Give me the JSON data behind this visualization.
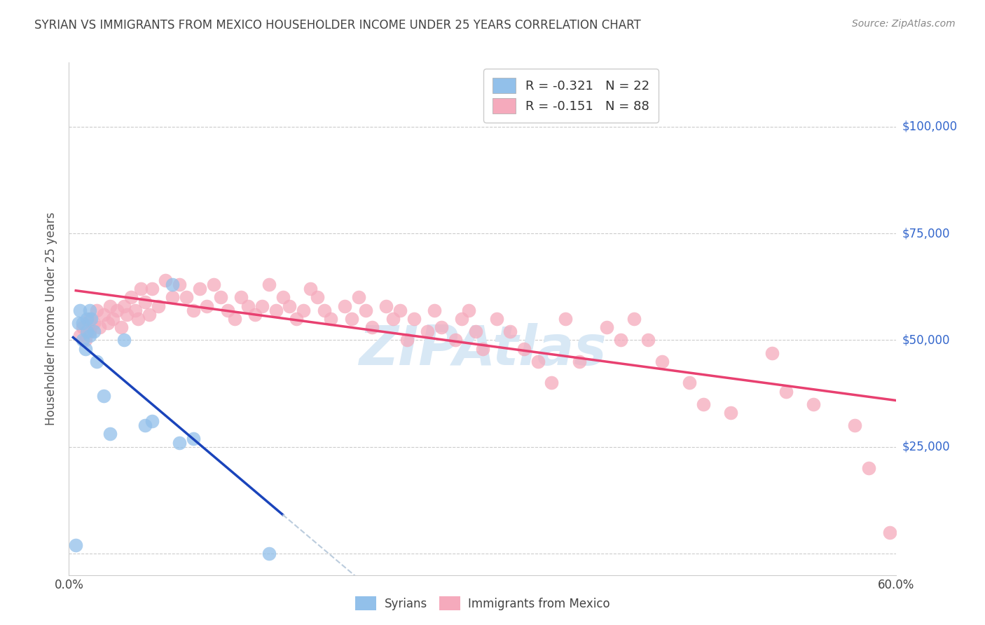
{
  "title": "SYRIAN VS IMMIGRANTS FROM MEXICO HOUSEHOLDER INCOME UNDER 25 YEARS CORRELATION CHART",
  "source": "Source: ZipAtlas.com",
  "ylabel": "Householder Income Under 25 years",
  "watermark": "ZIPAtlas",
  "xlim": [
    0.0,
    0.6
  ],
  "ylim": [
    -5000,
    115000
  ],
  "yticks": [
    0,
    25000,
    50000,
    75000,
    100000
  ],
  "ytick_labels": [
    "",
    "$25,000",
    "$50,000",
    "$75,000",
    "$100,000"
  ],
  "xticks": [
    0.0,
    0.1,
    0.2,
    0.3,
    0.4,
    0.5,
    0.6
  ],
  "xtick_labels": [
    "0.0%",
    "",
    "",
    "",
    "",
    "",
    "60.0%"
  ],
  "legend_syrian_r": "R = -0.321",
  "legend_syrian_n": "N = 22",
  "legend_mexico_r": "R = -0.151",
  "legend_mexico_n": "N = 88",
  "syrian_color": "#92C0EA",
  "mexico_color": "#F5AABC",
  "trend_syrian_color": "#1A44BB",
  "trend_mexico_color": "#E84070",
  "trend_syrian_dashed_color": "#BBCCDD",
  "background_color": "#FFFFFF",
  "grid_color": "#CCCCCC",
  "axis_color": "#CCCCCC",
  "title_color": "#444444",
  "ylabel_color": "#555555",
  "ytick_label_color": "#3366CC",
  "xtick_label_color": "#444444",
  "source_color": "#888888",
  "watermark_color": "#D8E8F5",
  "syrian_x": [
    0.005,
    0.007,
    0.008,
    0.01,
    0.01,
    0.012,
    0.013,
    0.013,
    0.015,
    0.015,
    0.016,
    0.018,
    0.02,
    0.025,
    0.03,
    0.04,
    0.055,
    0.06,
    0.075,
    0.08,
    0.09,
    0.145
  ],
  "syrian_y": [
    2000,
    54000,
    57000,
    50000,
    54000,
    48000,
    52000,
    55000,
    51000,
    57000,
    55000,
    52000,
    45000,
    37000,
    28000,
    50000,
    30000,
    31000,
    63000,
    26000,
    27000,
    0
  ],
  "mexico_x": [
    0.008,
    0.01,
    0.012,
    0.015,
    0.015,
    0.018,
    0.02,
    0.022,
    0.025,
    0.028,
    0.03,
    0.032,
    0.035,
    0.038,
    0.04,
    0.042,
    0.045,
    0.048,
    0.05,
    0.052,
    0.055,
    0.058,
    0.06,
    0.065,
    0.07,
    0.075,
    0.08,
    0.085,
    0.09,
    0.095,
    0.1,
    0.105,
    0.11,
    0.115,
    0.12,
    0.125,
    0.13,
    0.135,
    0.14,
    0.145,
    0.15,
    0.155,
    0.16,
    0.165,
    0.17,
    0.175,
    0.18,
    0.185,
    0.19,
    0.2,
    0.205,
    0.21,
    0.215,
    0.22,
    0.23,
    0.235,
    0.24,
    0.245,
    0.25,
    0.26,
    0.265,
    0.27,
    0.28,
    0.285,
    0.29,
    0.295,
    0.3,
    0.31,
    0.32,
    0.33,
    0.34,
    0.35,
    0.36,
    0.37,
    0.39,
    0.4,
    0.41,
    0.42,
    0.43,
    0.45,
    0.46,
    0.48,
    0.51,
    0.52,
    0.54,
    0.57,
    0.58,
    0.595
  ],
  "mexico_y": [
    51000,
    53000,
    50000,
    52000,
    55000,
    54000,
    57000,
    53000,
    56000,
    54000,
    58000,
    55000,
    57000,
    53000,
    58000,
    56000,
    60000,
    57000,
    55000,
    62000,
    59000,
    56000,
    62000,
    58000,
    64000,
    60000,
    63000,
    60000,
    57000,
    62000,
    58000,
    63000,
    60000,
    57000,
    55000,
    60000,
    58000,
    56000,
    58000,
    63000,
    57000,
    60000,
    58000,
    55000,
    57000,
    62000,
    60000,
    57000,
    55000,
    58000,
    55000,
    60000,
    57000,
    53000,
    58000,
    55000,
    57000,
    50000,
    55000,
    52000,
    57000,
    53000,
    50000,
    55000,
    57000,
    52000,
    48000,
    55000,
    52000,
    48000,
    45000,
    40000,
    55000,
    45000,
    53000,
    50000,
    55000,
    50000,
    45000,
    40000,
    35000,
    33000,
    47000,
    38000,
    35000,
    30000,
    20000,
    5000
  ],
  "trend_syrian_solid_end": 0.155,
  "trend_dashed_end": 0.55,
  "trend_mexico_start": 0.005,
  "trend_mexico_end": 0.6
}
